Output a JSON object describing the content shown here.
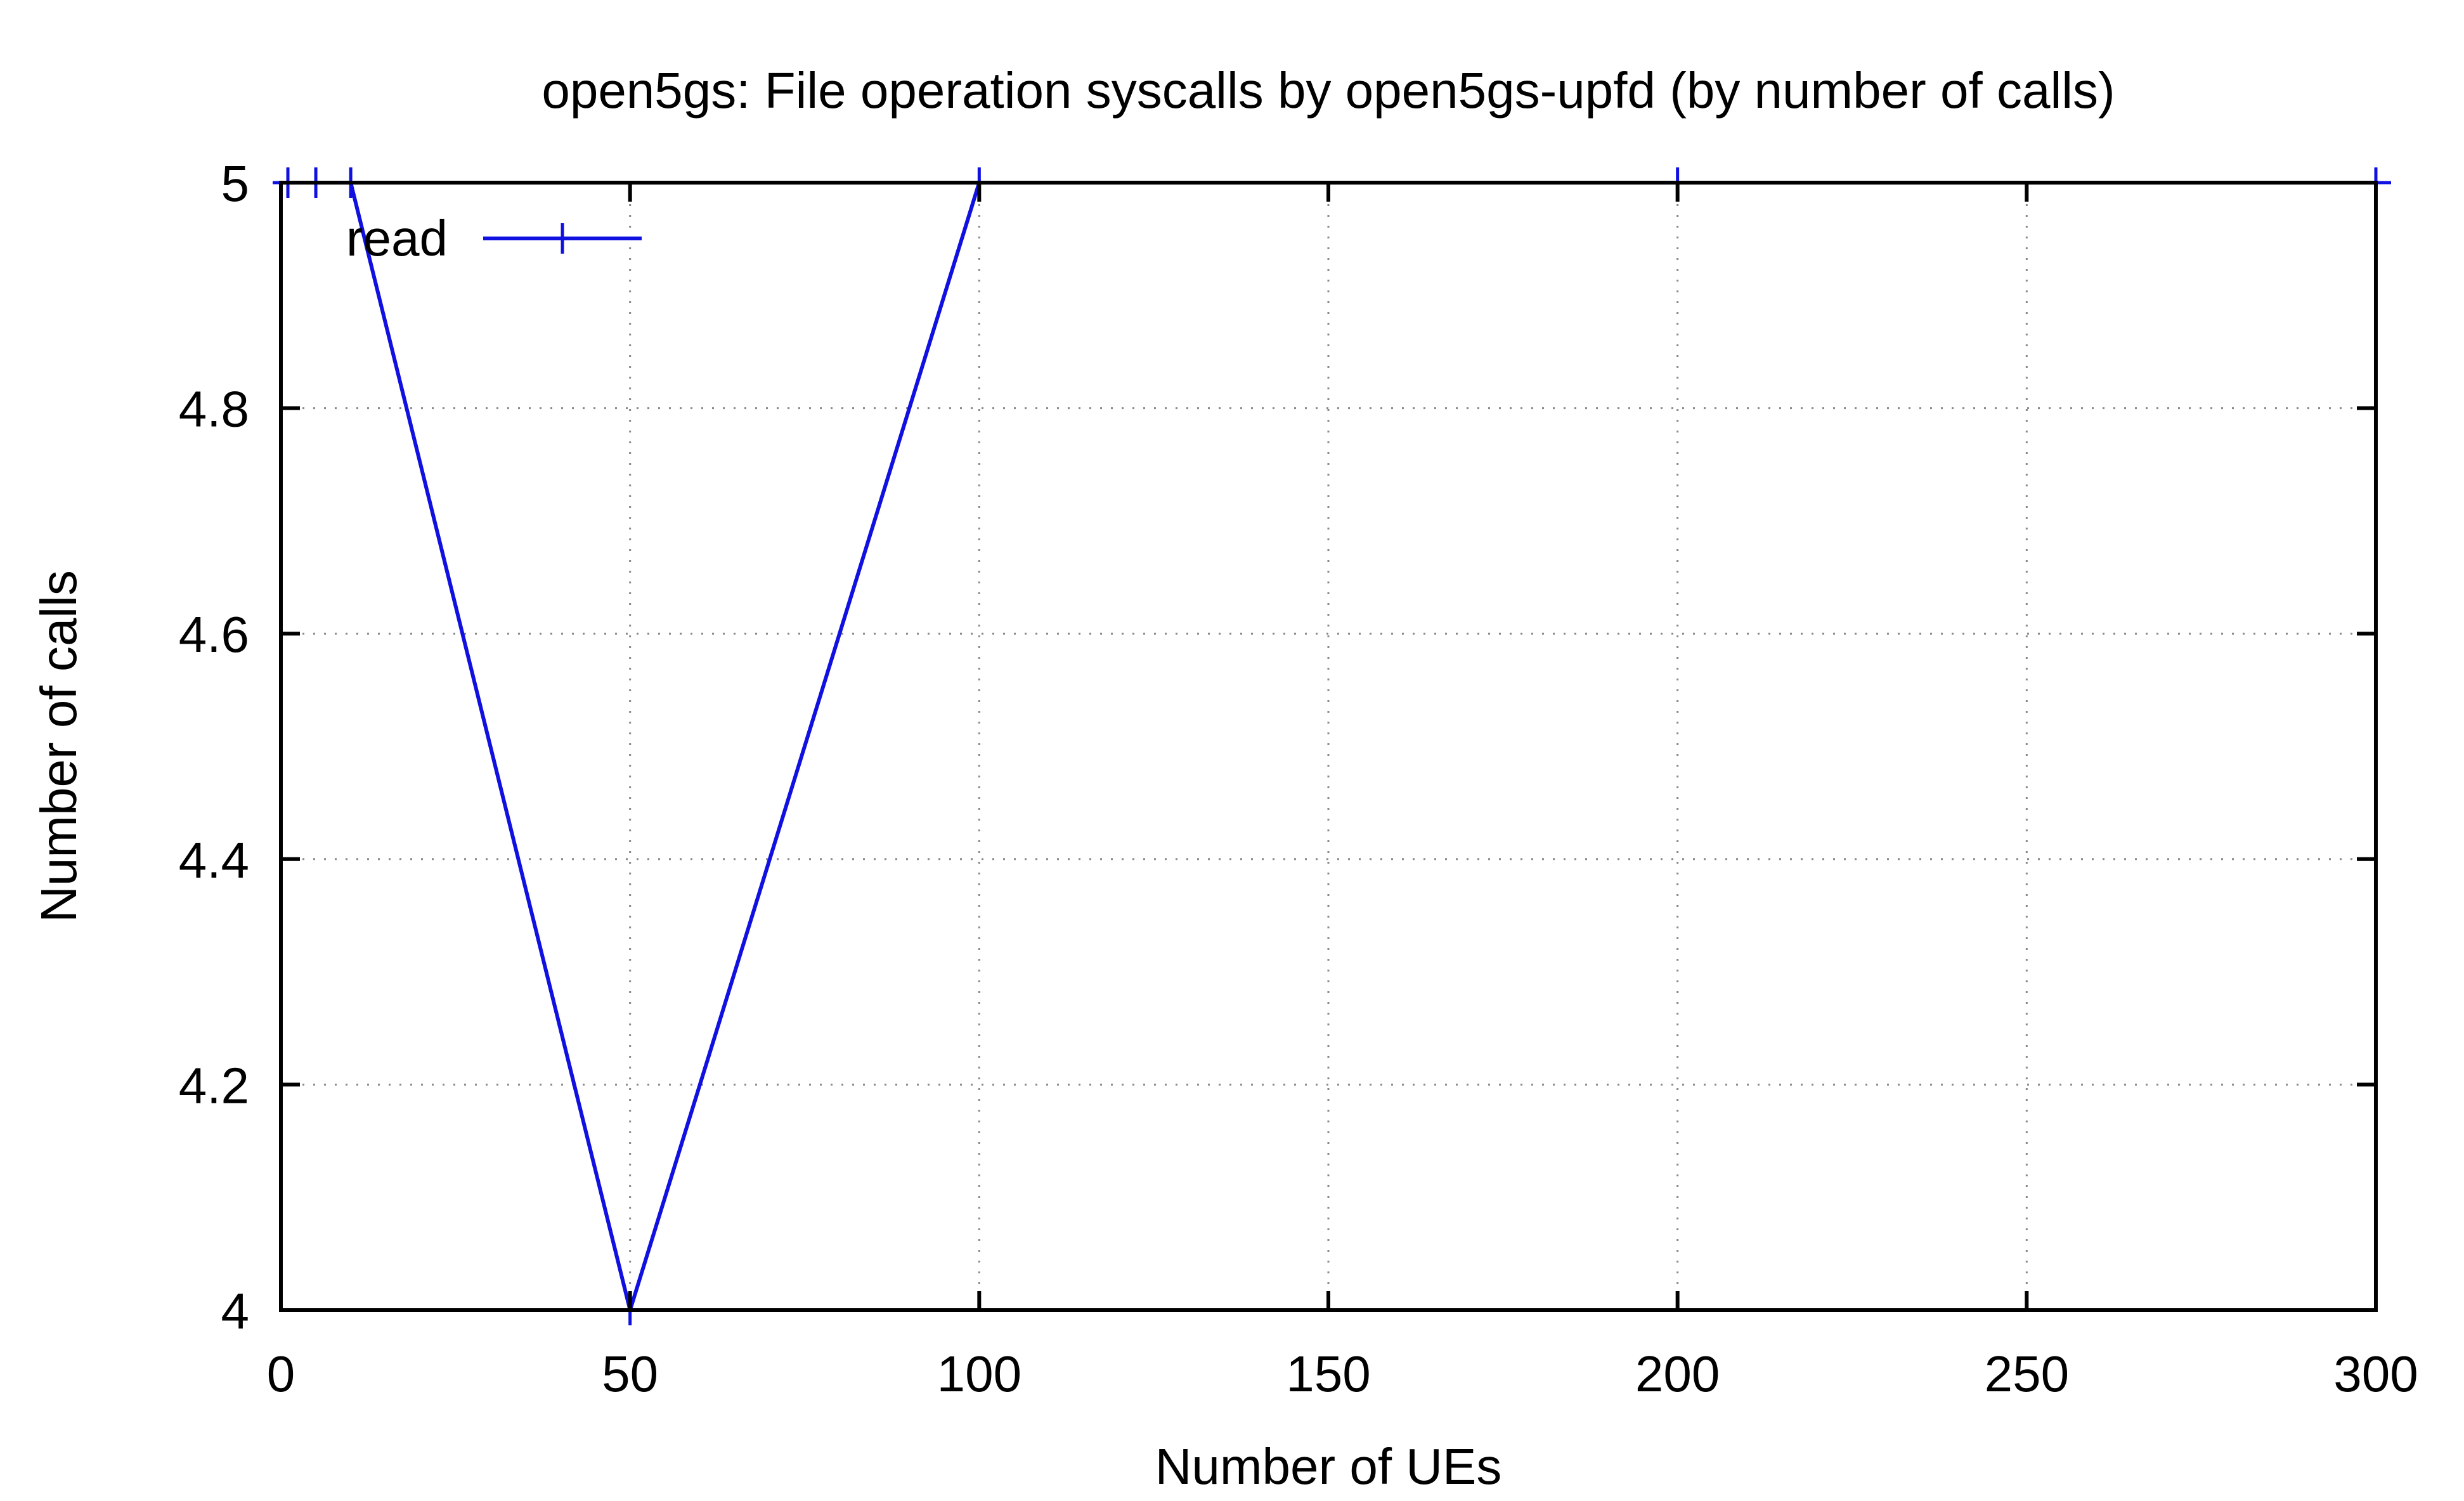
{
  "chart_data": {
    "type": "line",
    "title": "open5gs: File operation syscalls by open5gs-upfd (by number of calls)",
    "xlabel": "Number of UEs",
    "ylabel": "Number of calls",
    "xlim": [
      0,
      300
    ],
    "ylim": [
      4,
      5
    ],
    "xticks": [
      0,
      50,
      100,
      150,
      200,
      250,
      300
    ],
    "xtick_labels": [
      "0",
      "50",
      "100",
      "150",
      "200",
      "250",
      "300"
    ],
    "yticks": [
      4,
      4.2,
      4.4,
      4.6,
      4.8,
      5
    ],
    "ytick_labels": [
      "4",
      "4.2",
      "4.4",
      "4.6",
      "4.8",
      "5"
    ],
    "grid": true,
    "legend_position": "top-left",
    "series": [
      {
        "name": "read",
        "color": "#1010e0",
        "marker": "plus",
        "x": [
          1,
          5,
          10,
          50,
          100,
          200,
          300
        ],
        "y": [
          5,
          5,
          5,
          4,
          5,
          5,
          5
        ]
      }
    ]
  }
}
